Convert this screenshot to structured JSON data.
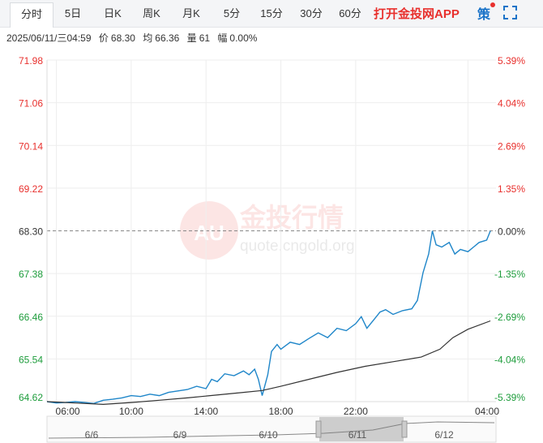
{
  "tabs": [
    {
      "label": "分时",
      "active": true
    },
    {
      "label": "5日"
    },
    {
      "label": "日K"
    },
    {
      "label": "周K"
    },
    {
      "label": "月K"
    },
    {
      "label": "5分"
    },
    {
      "label": "15分"
    },
    {
      "label": "30分"
    },
    {
      "label": "60分"
    }
  ],
  "app_link": "打开金投网APP",
  "strategy_label": "策",
  "info": {
    "datetime": "2025/06/11/三04:59",
    "price_label": "价",
    "price": "68.30",
    "avg_label": "均",
    "avg": "66.36",
    "volume_label": "量",
    "volume": "61",
    "change_label": "幅",
    "change": "0.00%"
  },
  "watermark": {
    "logo_text": "AU",
    "title": "金投行情",
    "url": "quote.cngold.org"
  },
  "colors": {
    "up": "#e8302d",
    "down": "#1d9c3b",
    "price_line": "#1f86c9",
    "avg_line": "#333333",
    "navigator": "#888888"
  },
  "chart_data": {
    "type": "line",
    "reference_price": 68.3,
    "y_ticks": [
      {
        "price": "71.98",
        "pct": "5.39%",
        "dir": "up"
      },
      {
        "price": "71.06",
        "pct": "4.04%",
        "dir": "up"
      },
      {
        "price": "70.14",
        "pct": "2.69%",
        "dir": "up"
      },
      {
        "price": "69.22",
        "pct": "1.35%",
        "dir": "up"
      },
      {
        "price": "68.30",
        "pct": "0.00%",
        "dir": "flat"
      },
      {
        "price": "67.38",
        "pct": "-1.35%",
        "dir": "down"
      },
      {
        "price": "66.46",
        "pct": "-2.69%",
        "dir": "down"
      },
      {
        "price": "65.54",
        "pct": "-4.04%",
        "dir": "down"
      },
      {
        "price": "64.62",
        "pct": "-5.39%",
        "dir": "down"
      }
    ],
    "ylim": [
      64.62,
      71.98
    ],
    "x_ticks": [
      "06:00",
      "10:00",
      "14:00",
      "18:00",
      "22:00",
      "04:00"
    ],
    "x_range_hours": [
      5.5,
      29.5
    ],
    "series": [
      {
        "key": "price",
        "values": [
          [
            5.5,
            64.62
          ],
          [
            6.0,
            64.59
          ],
          [
            6.5,
            64.6
          ],
          [
            7.0,
            64.62
          ],
          [
            7.5,
            64.6
          ],
          [
            8.0,
            64.58
          ],
          [
            8.5,
            64.65
          ],
          [
            9.0,
            64.67
          ],
          [
            9.5,
            64.7
          ],
          [
            10.0,
            64.75
          ],
          [
            10.5,
            64.73
          ],
          [
            11.0,
            64.78
          ],
          [
            11.5,
            64.75
          ],
          [
            12.0,
            64.82
          ],
          [
            12.5,
            64.85
          ],
          [
            13.0,
            64.88
          ],
          [
            13.5,
            64.95
          ],
          [
            14.0,
            64.9
          ],
          [
            14.3,
            65.1
          ],
          [
            14.6,
            65.05
          ],
          [
            15.0,
            65.22
          ],
          [
            15.5,
            65.18
          ],
          [
            16.0,
            65.28
          ],
          [
            16.3,
            65.2
          ],
          [
            16.6,
            65.32
          ],
          [
            16.8,
            65.1
          ],
          [
            17.0,
            64.75
          ],
          [
            17.3,
            65.2
          ],
          [
            17.5,
            65.7
          ],
          [
            17.8,
            65.85
          ],
          [
            18.0,
            65.75
          ],
          [
            18.5,
            65.9
          ],
          [
            19.0,
            65.85
          ],
          [
            19.5,
            65.98
          ],
          [
            20.0,
            66.1
          ],
          [
            20.5,
            66.0
          ],
          [
            21.0,
            66.2
          ],
          [
            21.5,
            66.15
          ],
          [
            22.0,
            66.3
          ],
          [
            22.3,
            66.45
          ],
          [
            22.6,
            66.2
          ],
          [
            23.0,
            66.4
          ],
          [
            23.3,
            66.55
          ],
          [
            23.6,
            66.6
          ],
          [
            24.0,
            66.5
          ],
          [
            24.5,
            66.58
          ],
          [
            25.0,
            66.62
          ],
          [
            25.3,
            66.8
          ],
          [
            25.6,
            67.4
          ],
          [
            25.9,
            67.8
          ],
          [
            26.1,
            68.3
          ],
          [
            26.3,
            68.0
          ],
          [
            26.6,
            67.95
          ],
          [
            27.0,
            68.05
          ],
          [
            27.3,
            67.8
          ],
          [
            27.6,
            67.9
          ],
          [
            28.0,
            67.85
          ],
          [
            28.3,
            67.95
          ],
          [
            28.6,
            68.05
          ],
          [
            29.0,
            68.1
          ],
          [
            29.2,
            68.3
          ]
        ]
      },
      {
        "key": "average",
        "values": [
          [
            5.5,
            64.62
          ],
          [
            7.0,
            64.59
          ],
          [
            8.5,
            64.56
          ],
          [
            10.0,
            64.6
          ],
          [
            11.5,
            64.65
          ],
          [
            13.0,
            64.7
          ],
          [
            14.5,
            64.76
          ],
          [
            16.0,
            64.82
          ],
          [
            17.0,
            64.86
          ],
          [
            18.0,
            64.95
          ],
          [
            19.5,
            65.1
          ],
          [
            21.0,
            65.25
          ],
          [
            22.5,
            65.38
          ],
          [
            24.0,
            65.48
          ],
          [
            25.5,
            65.58
          ],
          [
            26.5,
            65.75
          ],
          [
            27.2,
            66.0
          ],
          [
            28.0,
            66.18
          ],
          [
            29.2,
            66.36
          ]
        ]
      }
    ],
    "navigator": {
      "labels": [
        "6/6",
        "6/9",
        "6/10",
        "6/11",
        "6/12"
      ],
      "selected": "6/11"
    }
  }
}
